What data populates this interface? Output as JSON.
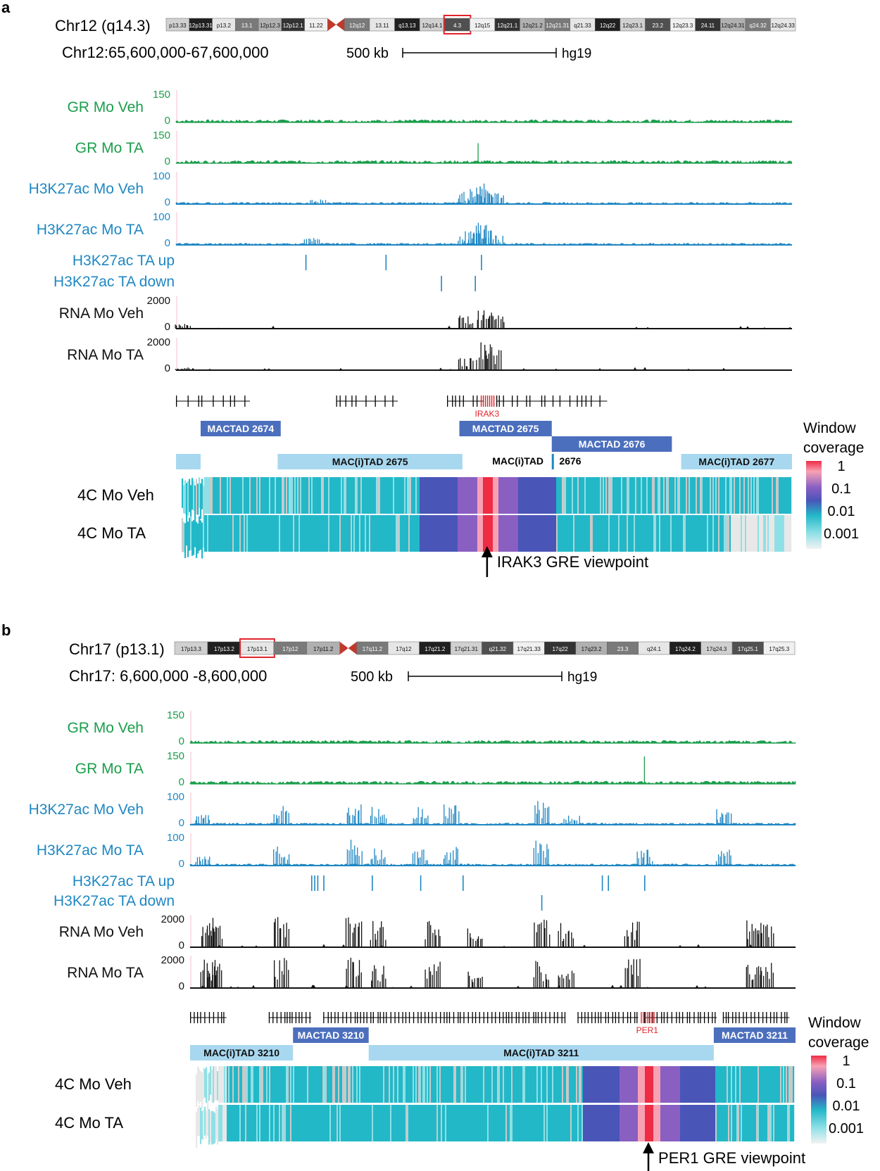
{
  "colors": {
    "gr": "#1a9e4b",
    "h3k27ac": "#1f87c3",
    "rna": "#111111",
    "highlight": "#e2232b",
    "mactad": "#4c6fbd",
    "macitad": "#a8d8ef",
    "cyan": "#23b8c8",
    "cyan_light": "#8ee0e6",
    "grey": "#c9c9c9",
    "blue": "#4a55b8",
    "purple": "#8a5fc2",
    "red": "#ee2c44",
    "pink": "#f7a1b4"
  },
  "panels": [
    {
      "letter": "a",
      "chrom_label": "Chr12 (q14.3)",
      "coords": "Chr12:65,600,000-67,600,000",
      "scale_label": "500 kb",
      "genome": "hg19",
      "ideogram": {
        "p_bands": [
          "p13.33",
          "12p13.31",
          "p13.2",
          "13.1",
          "12p12.3",
          "12p12.1",
          "11.22"
        ],
        "q_bands": [
          "12q12",
          "13.11",
          "q13.13",
          "12q14.1",
          "4.3",
          "12q15",
          "12q21.1",
          "12q21.2",
          "12q21.31",
          "q21.33",
          "12q22",
          "12q23.1",
          "23.2",
          "12q23.3",
          "24.11",
          "12q24.31",
          "q24.32",
          "12q24.33"
        ],
        "highlight_band": "4.3"
      },
      "tracks": [
        {
          "label": "GR Mo Veh",
          "type": "gr",
          "max_label": "150",
          "min_label": "0",
          "peaks": []
        },
        {
          "label": "GR Mo TA",
          "type": "gr",
          "max_label": "150",
          "min_label": "0",
          "peaks": [
            {
              "x": 0.49,
              "h": 0.62
            }
          ]
        },
        {
          "label": "H3K27ac Mo Veh",
          "type": "h3k27ac",
          "max_label": "100",
          "min_label": "0",
          "peaks": [
            {
              "x": 0.23,
              "h": 0.18
            },
            {
              "x": 0.49,
              "h": 0.72
            },
            {
              "x": 0.5,
              "h": 0.55
            },
            {
              "x": 0.47,
              "h": 0.4
            },
            {
              "x": 0.52,
              "h": 0.35
            }
          ]
        },
        {
          "label": "H3K27ac Mo TA",
          "type": "h3k27ac",
          "max_label": "100",
          "min_label": "0",
          "peaks": [
            {
              "x": 0.22,
              "h": 0.22
            },
            {
              "x": 0.49,
              "h": 0.62
            },
            {
              "x": 0.5,
              "h": 0.7
            },
            {
              "x": 0.47,
              "h": 0.45
            },
            {
              "x": 0.52,
              "h": 0.3
            }
          ]
        },
        {
          "label": "H3K27ac TA up",
          "type": "diffup",
          "marks": [
            0.21,
            0.34,
            0.495
          ]
        },
        {
          "label": "H3K27ac TA down",
          "type": "diffdown",
          "marks": [
            0.43,
            0.485
          ]
        },
        {
          "label": "RNA Mo Veh",
          "type": "rna",
          "max_label": "2000",
          "min_label": "0",
          "peaks": [
            {
              "x": 0.01,
              "h": 0.15
            },
            {
              "x": 0.47,
              "h": 0.5
            },
            {
              "x": 0.5,
              "h": 0.62
            },
            {
              "x": 0.52,
              "h": 0.45
            }
          ]
        },
        {
          "label": "RNA Mo TA",
          "type": "rna",
          "max_label": "2000",
          "min_label": "0",
          "peaks": [
            {
              "x": 0.01,
              "h": 0.12
            },
            {
              "x": 0.47,
              "h": 0.45
            },
            {
              "x": 0.5,
              "h": 0.9
            },
            {
              "x": 0.515,
              "h": 0.7
            }
          ]
        }
      ],
      "gene_label": "IRAK3",
      "gene_pos": 0.505,
      "tads": [
        {
          "label": "MACTAD 2674",
          "kind": "mactad",
          "row": 0,
          "start": 0.04,
          "end": 0.17
        },
        {
          "label": "MACTAD 2675",
          "kind": "mactad",
          "row": 0,
          "start": 0.46,
          "end": 0.61
        },
        {
          "label": "MACTAD 2676",
          "kind": "mactad",
          "row": 1,
          "start": 0.61,
          "end": 0.805
        },
        {
          "label": "",
          "kind": "macitad",
          "row": 2,
          "start": 0.0,
          "end": 0.04
        },
        {
          "label": "MAC(i)TAD 2675",
          "kind": "macitad",
          "row": 2,
          "start": 0.165,
          "end": 0.465
        },
        {
          "label": "MAC(i)TAD",
          "kind": "text",
          "row": 2,
          "start": 0.5,
          "end": 0.61
        },
        {
          "label": "2676",
          "kind": "text",
          "row": 2,
          "start": 0.62,
          "end": 0.66
        },
        {
          "label": "MAC(i)TAD 2677",
          "kind": "macitad",
          "row": 2,
          "start": 0.82,
          "end": 1.0
        }
      ],
      "fourc": [
        {
          "label": "4C Mo Veh"
        },
        {
          "label": "4C Mo TA"
        }
      ],
      "viewpoint_label": "IRAK3 GRE viewpoint",
      "viewpoint_pos": 0.505,
      "legend_title": [
        "Window",
        "coverage"
      ],
      "legend_ticks": [
        "1",
        "0.1",
        "0.01",
        "0.001"
      ]
    },
    {
      "letter": "b",
      "chrom_label": "Chr17 (p13.1)",
      "coords": "Chr17: 6,600,000 -8,600,000",
      "scale_label": "500 kb",
      "genome": "hg19",
      "ideogram": {
        "p_bands": [
          "17p13.3",
          "17p13.2",
          "17p13.1",
          "17p12",
          "17p11.2"
        ],
        "q_bands": [
          "17q11.2",
          "17q12",
          "17q21.2",
          "17q21.31",
          "q21.32",
          "17q21.33",
          "17q22",
          "17q23.2",
          "23.3",
          "q24.1",
          "17q24.2",
          "17q24.3",
          "17q25.1",
          "17q25.3"
        ],
        "highlight_band": "17p13.1"
      },
      "tracks": [
        {
          "label": "GR Mo Veh",
          "type": "gr",
          "max_label": "150",
          "min_label": "0",
          "peaks": []
        },
        {
          "label": "GR Mo TA",
          "type": "gr",
          "max_label": "150",
          "min_label": "0",
          "peaks": [
            {
              "x": 0.75,
              "h": 0.85
            }
          ]
        },
        {
          "label": "H3K27ac Mo Veh",
          "type": "h3k27ac",
          "max_label": "100",
          "min_label": "0",
          "peaks": [
            {
              "x": 0.15,
              "h": 0.7
            },
            {
              "x": 0.27,
              "h": 0.75
            },
            {
              "x": 0.31,
              "h": 0.6
            },
            {
              "x": 0.38,
              "h": 0.55
            },
            {
              "x": 0.43,
              "h": 0.65
            },
            {
              "x": 0.58,
              "h": 0.8
            },
            {
              "x": 0.63,
              "h": 0.4
            },
            {
              "x": 0.88,
              "h": 0.55
            },
            {
              "x": 0.02,
              "h": 0.3
            }
          ]
        },
        {
          "label": "H3K27ac Mo TA",
          "type": "h3k27ac",
          "max_label": "100",
          "min_label": "0",
          "peaks": [
            {
              "x": 0.15,
              "h": 0.6
            },
            {
              "x": 0.27,
              "h": 0.8
            },
            {
              "x": 0.31,
              "h": 0.55
            },
            {
              "x": 0.38,
              "h": 0.5
            },
            {
              "x": 0.43,
              "h": 0.6
            },
            {
              "x": 0.58,
              "h": 0.85
            },
            {
              "x": 0.75,
              "h": 0.5
            },
            {
              "x": 0.88,
              "h": 0.5
            },
            {
              "x": 0.02,
              "h": 0.3
            }
          ]
        },
        {
          "label": "H3K27ac TA up",
          "type": "diffup",
          "marks": [
            0.2,
            0.205,
            0.21,
            0.22,
            0.3,
            0.38,
            0.45,
            0.68,
            0.69,
            0.75
          ]
        },
        {
          "label": "H3K27ac TA down",
          "type": "diffdown",
          "marks": [
            0.58
          ]
        },
        {
          "label": "RNA Mo Veh",
          "type": "rna",
          "max_label": "2000",
          "min_label": "0",
          "peaks": [
            {
              "x": 0.03,
              "h": 0.95
            },
            {
              "x": 0.04,
              "h": 0.9
            },
            {
              "x": 0.15,
              "h": 0.95
            },
            {
              "x": 0.27,
              "h": 0.95
            },
            {
              "x": 0.31,
              "h": 0.85
            },
            {
              "x": 0.4,
              "h": 0.9
            },
            {
              "x": 0.47,
              "h": 0.6
            },
            {
              "x": 0.58,
              "h": 0.9
            },
            {
              "x": 0.62,
              "h": 0.75
            },
            {
              "x": 0.73,
              "h": 0.8
            },
            {
              "x": 0.93,
              "h": 0.95
            },
            {
              "x": 0.95,
              "h": 0.8
            }
          ]
        },
        {
          "label": "RNA Mo TA",
          "type": "rna",
          "max_label": "2000",
          "min_label": "0",
          "peaks": [
            {
              "x": 0.03,
              "h": 0.95
            },
            {
              "x": 0.04,
              "h": 0.9
            },
            {
              "x": 0.15,
              "h": 0.95
            },
            {
              "x": 0.27,
              "h": 0.95
            },
            {
              "x": 0.31,
              "h": 0.8
            },
            {
              "x": 0.4,
              "h": 0.9
            },
            {
              "x": 0.47,
              "h": 0.55
            },
            {
              "x": 0.58,
              "h": 0.85
            },
            {
              "x": 0.62,
              "h": 0.7
            },
            {
              "x": 0.73,
              "h": 0.95
            },
            {
              "x": 0.93,
              "h": 0.95
            },
            {
              "x": 0.95,
              "h": 0.8
            }
          ]
        }
      ],
      "gene_label": "PER1",
      "gene_pos": 0.755,
      "tads": [
        {
          "label": "MACTAD 3210",
          "kind": "mactad",
          "row": 0,
          "start": 0.17,
          "end": 0.295
        },
        {
          "label": "MACTAD 3211",
          "kind": "mactad",
          "row": 0,
          "start": 0.865,
          "end": 1.0
        },
        {
          "label": "MAC(i)TAD 3210",
          "kind": "macitad",
          "row": 1,
          "start": 0.0,
          "end": 0.17
        },
        {
          "label": "MAC(i)TAD 3211",
          "kind": "macitad",
          "row": 1,
          "start": 0.295,
          "end": 0.865
        }
      ],
      "fourc": [
        {
          "label": "4C Mo Veh"
        },
        {
          "label": "4C Mo TA"
        }
      ],
      "viewpoint_label": "PER1 GRE viewpoint",
      "viewpoint_pos": 0.757,
      "legend_title": [
        "Window",
        "coverage"
      ],
      "legend_ticks": [
        "1",
        "0.1",
        "0.01",
        "0.001"
      ]
    }
  ]
}
